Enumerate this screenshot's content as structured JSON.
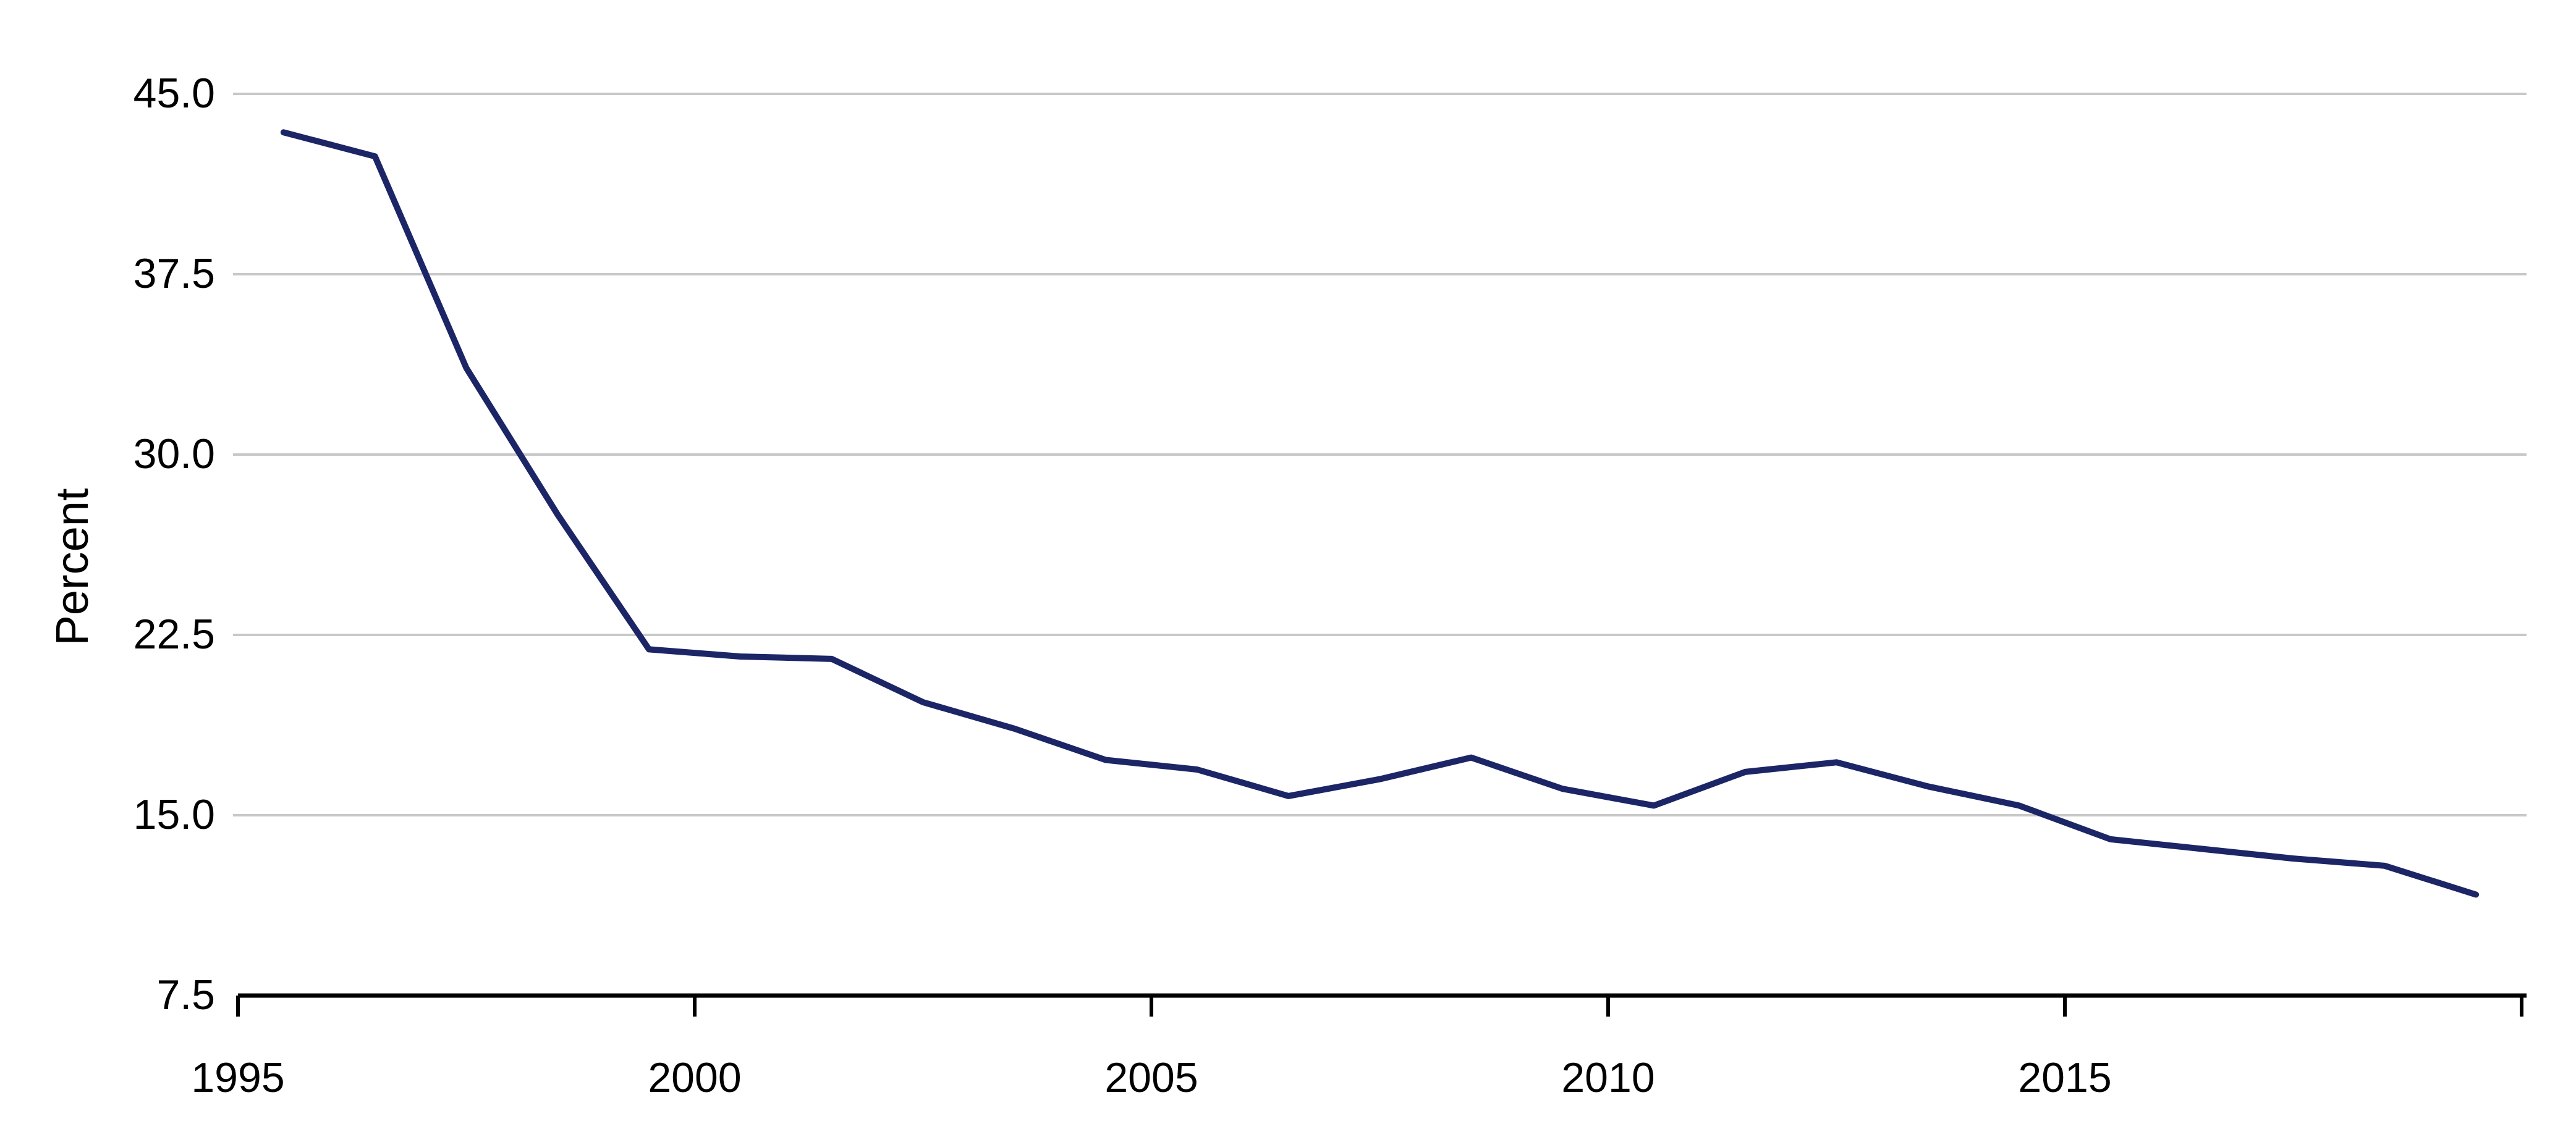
{
  "chart_data": {
    "type": "line",
    "title": "",
    "xlabel": "",
    "ylabel": "Percent",
    "xlim": [
      1995,
      2020
    ],
    "ylim": [
      7.5,
      45.0
    ],
    "y_ticks": [
      7.5,
      15.0,
      22.5,
      30.0,
      37.5,
      45.0
    ],
    "y_tick_labels": [
      "7.5",
      "15.0",
      "22.5",
      "30.0",
      "37.5",
      "45.0"
    ],
    "x_ticks": [
      1995,
      2000,
      2005,
      2010,
      2015,
      2020
    ],
    "x_tick_labels": [
      "1995",
      "2000",
      "2005",
      "2010",
      "2015",
      ""
    ],
    "grid": "horizontal",
    "legend": "none",
    "series": [
      {
        "color": "#1c2566",
        "x": [
          1995.5,
          1996.5,
          1997.5,
          1998.5,
          1999.5,
          2000.5,
          2001.5,
          2002.5,
          2003.5,
          2004.5,
          2005.5,
          2006.5,
          2007.5,
          2008.5,
          2009.5,
          2010.5,
          2011.5,
          2012.5,
          2013.5,
          2014.5,
          2015.5,
          2016.5,
          2017.5,
          2018.5,
          2019.5
        ],
        "values": [
          43.4,
          42.4,
          33.6,
          27.5,
          21.9,
          21.6,
          21.5,
          19.7,
          18.6,
          17.3,
          16.9,
          15.8,
          16.5,
          17.4,
          16.1,
          15.4,
          16.8,
          17.2,
          16.2,
          15.4,
          14.0,
          13.6,
          13.2,
          12.9,
          11.7
        ]
      }
    ],
    "colors": {
      "line": "#1c2566",
      "grid": "#c8c8c8",
      "axis": "#000000"
    }
  }
}
